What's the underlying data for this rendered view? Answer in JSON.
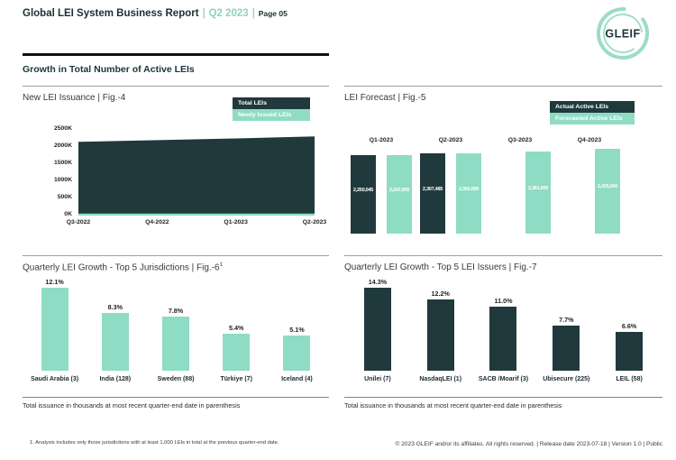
{
  "header": {
    "title": "Global LEI System Business Report",
    "separator": "|",
    "period": "Q2 2023",
    "page": "Page 05",
    "logo_text": "GLEIF"
  },
  "section": {
    "title": "Growth in Total Number of Active LEIs"
  },
  "colors": {
    "dark": "#20393c",
    "teal": "#8edcc3",
    "accent_text": "#8bd4ba"
  },
  "chart_data": [
    {
      "id": "fig4",
      "type": "area",
      "title": "New LEI Issuance | Fig.-4",
      "legend": [
        "Total LEIs",
        "Newly Issued LEIs"
      ],
      "categories": [
        "Q3-2022",
        "Q4-2022",
        "Q1-2023",
        "Q2-2023"
      ],
      "series": [
        {
          "name": "Total LEIs",
          "color": "#20393c",
          "values_k": [
            2150,
            2200,
            2250,
            2307
          ]
        },
        {
          "name": "Newly Issued LEIs",
          "color": "#8edcc3",
          "values_k": [
            60,
            60,
            60,
            60
          ]
        }
      ],
      "yticks": [
        "2500K",
        "2000K",
        "1500K",
        "1000K",
        "500K",
        "0K"
      ],
      "ylim_k": [
        0,
        2500
      ],
      "grid": false,
      "legend_position": "top-right"
    },
    {
      "id": "fig5",
      "type": "bar",
      "title": "LEI Forecast | Fig.-5",
      "legend": [
        "Actual Active LEIs",
        "Forecasted Active LEIs"
      ],
      "categories": [
        "Q1-2023",
        "Q2-2023",
        "Q3-2023",
        "Q4-2023"
      ],
      "series": [
        {
          "name": "Actual Active LEIs",
          "color": "#20393c",
          "values": [
            2250045,
            2307485,
            null,
            null
          ],
          "labels": [
            "2,250,045",
            "2,307,485",
            null,
            null
          ]
        },
        {
          "name": "Forecasted Active LEIs",
          "color": "#8edcc3",
          "values": [
            2247000,
            2302000,
            2361000,
            2425000
          ],
          "labels": [
            "2,247,000",
            "2,302,000",
            "2,361,000",
            "2,425,000"
          ]
        }
      ],
      "value_scale_max": 2450000,
      "legend_position": "top-right"
    },
    {
      "id": "fig6",
      "type": "bar",
      "title_main": "Quarterly LEI Growth - Top 5 Jurisdictions | Fig.-6",
      "title_sup": "1",
      "categories": [
        "Saudi Arabia (3)",
        "India (128)",
        "Sweden (88)",
        "Türkiye (7)",
        "Iceland (4)"
      ],
      "values": [
        12.1,
        8.3,
        7.8,
        5.4,
        5.1
      ],
      "labels": [
        "12.1%",
        "8.3%",
        "7.8%",
        "5.4%",
        "5.1%"
      ],
      "bar_color": "#8edcc3",
      "footnote": "Total issuance in thousands at most recent quarter-end date in parenthesis"
    },
    {
      "id": "fig7",
      "type": "bar",
      "title_main": "Quarterly LEI Growth - Top 5 LEI Issuers | Fig.-7",
      "categories": [
        "Unilei (7)",
        "NasdaqLEI (1)",
        "SACB /Moarif (3)",
        "Ubisecure (225)",
        "LEIL (58)"
      ],
      "values": [
        14.3,
        12.2,
        11.0,
        7.7,
        6.6
      ],
      "labels": [
        "14.3%",
        "12.2%",
        "11.0%",
        "7.7%",
        "6.6%"
      ],
      "bar_color": "#20393c",
      "footnote": "Total issuance in thousands at most recent quarter-end date in parenthesis"
    }
  ],
  "footnote1": "1. Analysis includes only those jurisdictions with at least 1,000 LEIs in total at the previous quarter-end date.",
  "footer": "© 2023 GLEIF and/or its affiliates. All rights reserved. | Release date 2023-07-18 | Version 1.0 | Public"
}
